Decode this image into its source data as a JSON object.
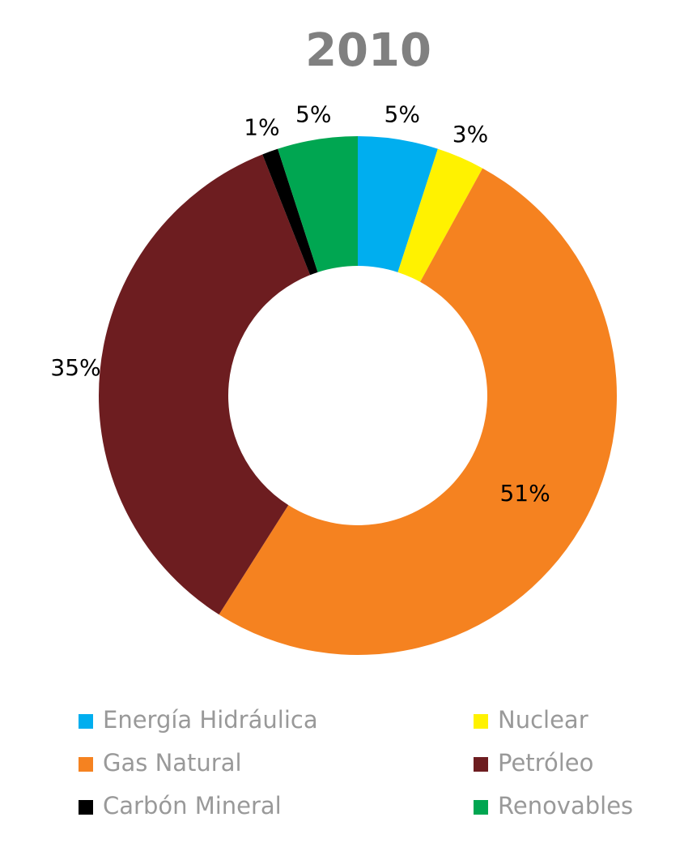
{
  "chart_data": {
    "type": "donut",
    "title": "2010",
    "categories": [
      "Energía Hidráulica",
      "Nuclear",
      "Gas Natural",
      "Petróleo",
      "Carbón Mineral",
      "Renovables"
    ],
    "values": [
      5,
      3,
      51,
      35,
      1,
      5
    ],
    "value_labels": [
      "5%",
      "3%",
      "51%",
      "35%",
      "1%",
      "5%"
    ],
    "colors": [
      "#00aeef",
      "#fff200",
      "#f58220",
      "#6d1d20",
      "#000000",
      "#00a651"
    ]
  }
}
